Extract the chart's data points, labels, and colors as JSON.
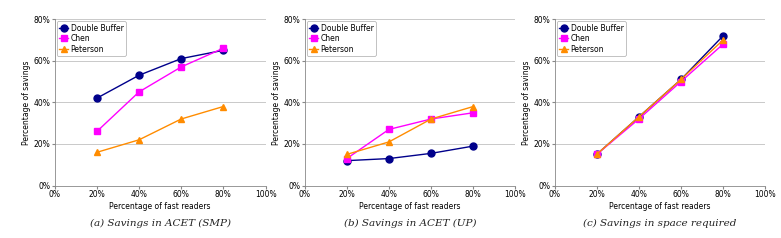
{
  "x": [
    0.2,
    0.4,
    0.6,
    0.8
  ],
  "chart_a": {
    "double_buffer": [
      0.42,
      0.53,
      0.61,
      0.65
    ],
    "chen": [
      0.26,
      0.45,
      0.57,
      0.66
    ],
    "peterson": [
      0.16,
      0.22,
      0.32,
      0.38
    ]
  },
  "chart_b": {
    "double_buffer": [
      0.12,
      0.13,
      0.155,
      0.19
    ],
    "chen": [
      0.13,
      0.27,
      0.32,
      0.35
    ],
    "peterson": [
      0.15,
      0.21,
      0.32,
      0.38
    ]
  },
  "chart_c": {
    "double_buffer": [
      0.15,
      0.33,
      0.51,
      0.72
    ],
    "chen": [
      0.15,
      0.32,
      0.5,
      0.68
    ],
    "peterson": [
      0.15,
      0.33,
      0.51,
      0.7
    ]
  },
  "colors": {
    "double_buffer": "#00008b",
    "chen": "#ff00ff",
    "peterson": "#ff8c00"
  },
  "markers": {
    "double_buffer": "o",
    "chen": "s",
    "peterson": "^"
  },
  "labels": {
    "double_buffer": "Double Buffer",
    "chen": "Chen",
    "peterson": "Peterson"
  },
  "xlabel": "Percentage of fast readers",
  "ylabel": "Percentage of savings",
  "xlim": [
    0.0,
    1.0
  ],
  "ylim": [
    0.0,
    0.8
  ],
  "xticks": [
    0.0,
    0.2,
    0.4,
    0.6,
    0.8,
    1.0
  ],
  "yticks": [
    0.0,
    0.2,
    0.4,
    0.6,
    0.8
  ],
  "caption_a": "(a) Savings in ACET (SMP)",
  "caption_b": "(b) Savings in ACET (UP)",
  "caption_c": "(c) Savings in space required",
  "bg_color": "#ffffff",
  "grid_color": "#c0c0c0",
  "markersize": 5,
  "linewidth": 1.0,
  "tick_fontsize": 5.5,
  "label_fontsize": 5.5,
  "legend_fontsize": 5.5,
  "caption_fontsize": 7.5
}
